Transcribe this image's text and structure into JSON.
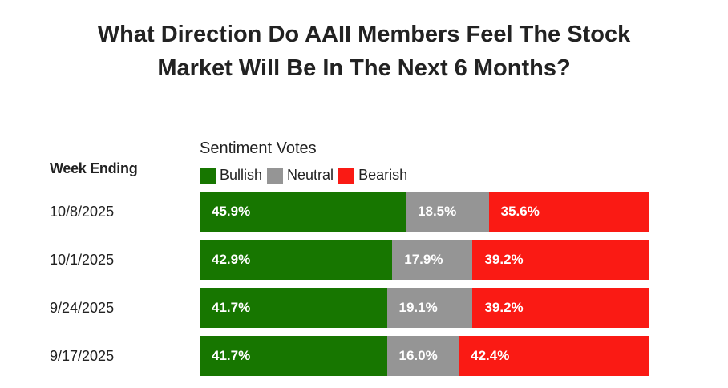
{
  "chart_data": {
    "type": "bar",
    "orientation": "horizontal",
    "stacked": true,
    "title": "What Direction Do AAII Members Feel The Stock Market Will Be In The Next 6 Months?",
    "title_lines": [
      "What Direction Do AAII Members Feel The Stock",
      "Market Will Be In The Next 6 Months?"
    ],
    "legend_title": "Sentiment Votes",
    "row_header": "Week Ending",
    "categories": [
      "10/8/2025",
      "10/1/2025",
      "9/24/2025",
      "9/17/2025"
    ],
    "series": [
      {
        "name": "Bullish",
        "color": "#177600",
        "values": [
          45.9,
          42.9,
          41.7,
          41.7
        ],
        "labels": [
          "45.9%",
          "42.9%",
          "41.7%",
          "41.7%"
        ]
      },
      {
        "name": "Neutral",
        "color": "#959595",
        "values": [
          18.5,
          17.9,
          19.1,
          16.0
        ],
        "labels": [
          "18.5%",
          "17.9%",
          "19.1%",
          "16.0%"
        ]
      },
      {
        "name": "Bearish",
        "color": "#fa1a14",
        "values": [
          35.6,
          39.2,
          39.2,
          42.4
        ],
        "labels": [
          "35.6%",
          "39.2%",
          "39.2%",
          "42.4%"
        ]
      }
    ],
    "xlim": [
      0,
      100
    ]
  }
}
